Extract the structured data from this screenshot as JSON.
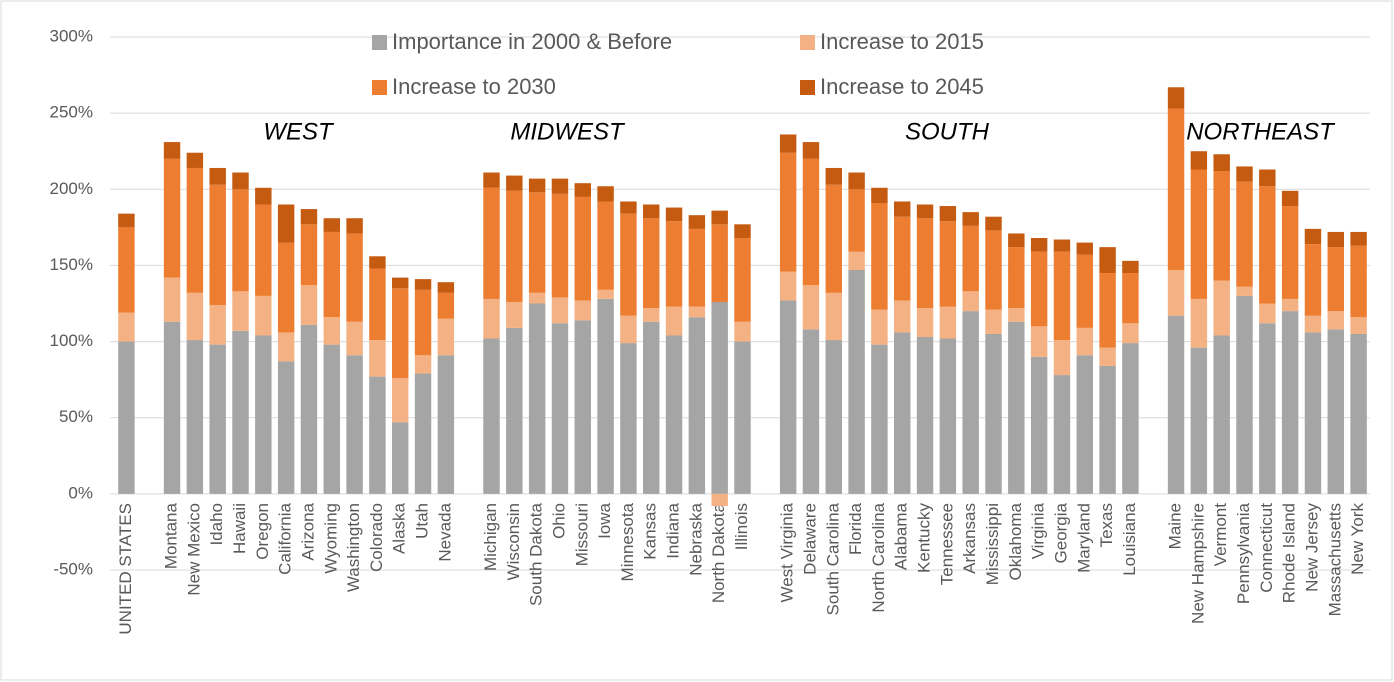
{
  "chart_data": {
    "type": "stacked_bar",
    "categories": [
      "UNITED STATES",
      null,
      "Montana",
      "New Mexico",
      "Idaho",
      "Hawaii",
      "Oregon",
      "California",
      "Arizona",
      "Wyoming",
      "Washington",
      "Colorado",
      "Alaska",
      "Utah",
      "Nevada",
      null,
      "Michigan",
      "Wisconsin",
      "South Dakota",
      "Ohio",
      "Missouri",
      "Iowa",
      "Minnesota",
      "Kansas",
      "Indiana",
      "Nebraska",
      "North Dakota",
      "Illinois",
      null,
      "West Virginia",
      "Delaware",
      "South Carolina",
      "Florida",
      "North Carolina",
      "Alabama",
      "Kentucky",
      "Tennessee",
      "Arkansas",
      "Mississippi",
      "Oklahoma",
      "Virginia",
      "Georgia",
      "Maryland",
      "Texas",
      "Louisiana",
      null,
      "Maine",
      "New Hampshire",
      "Vermont",
      "Pennsylvania",
      "Connecticut",
      "Rhode Island",
      "New Jersey",
      "Massachusetts",
      "New York"
    ],
    "series": [
      {
        "name": "Importance in 2000 & Before",
        "color": "#a5a5a5",
        "values": [
          100,
          null,
          113,
          101,
          98,
          107,
          104,
          87,
          111,
          98,
          91,
          77,
          47,
          79,
          91,
          null,
          102,
          109,
          125,
          112,
          114,
          128,
          99,
          113,
          104,
          116,
          126,
          100,
          null,
          127,
          108,
          101,
          147,
          98,
          106,
          103,
          102,
          120,
          105,
          113,
          90,
          78,
          91,
          84,
          99,
          null,
          117,
          96,
          104,
          130,
          112,
          120,
          106,
          108,
          105
        ]
      },
      {
        "name": "Increase to 2015",
        "color": "#f4b183",
        "values": [
          19,
          null,
          29,
          31,
          26,
          26,
          26,
          19,
          26,
          18,
          22,
          24,
          29,
          12,
          24,
          null,
          26,
          17,
          7,
          17,
          13,
          6,
          18,
          9,
          19,
          7,
          -8,
          13,
          null,
          19,
          29,
          31,
          12,
          23,
          21,
          19,
          21,
          13,
          16,
          9,
          20,
          23,
          18,
          12,
          13,
          null,
          30,
          32,
          36,
          6,
          13,
          8,
          11,
          12,
          11
        ]
      },
      {
        "name": "Increase to 2030",
        "color": "#ed7d31",
        "values": [
          56,
          null,
          78,
          82,
          79,
          67,
          60,
          59,
          40,
          56,
          58,
          47,
          59,
          43,
          17,
          null,
          73,
          73,
          66,
          68,
          68,
          58,
          67,
          59,
          56,
          51,
          51,
          55,
          null,
          78,
          83,
          71,
          41,
          70,
          55,
          59,
          56,
          43,
          52,
          40,
          49,
          58,
          48,
          49,
          33,
          null,
          106,
          85,
          72,
          69,
          77,
          61,
          47,
          42,
          47
        ]
      },
      {
        "name": "Increase to 2045",
        "color": "#c55a11",
        "values": [
          9,
          null,
          11,
          10,
          11,
          11,
          11,
          25,
          10,
          9,
          10,
          8,
          7,
          7,
          7,
          null,
          10,
          10,
          9,
          10,
          9,
          10,
          8,
          9,
          9,
          9,
          9,
          9,
          null,
          12,
          11,
          11,
          11,
          10,
          10,
          9,
          10,
          9,
          9,
          9,
          9,
          8,
          8,
          17,
          8,
          null,
          14,
          12,
          11,
          10,
          11,
          10,
          10,
          10,
          9
        ]
      }
    ],
    "annotations": [
      "WEST",
      "MIDWEST",
      "SOUTH",
      "NORTHEAST"
    ],
    "ylim": [
      -50,
      300
    ],
    "yticks": [
      {
        "value": -50,
        "label": "-50%"
      },
      {
        "value": 0,
        "label": "0%"
      },
      {
        "value": 50,
        "label": "50%"
      },
      {
        "value": 100,
        "label": "100%"
      },
      {
        "value": 150,
        "label": "150%"
      },
      {
        "value": 200,
        "label": "200%"
      },
      {
        "value": 250,
        "label": "250%"
      },
      {
        "value": 300,
        "label": "300%"
      }
    ],
    "grid": true
  }
}
